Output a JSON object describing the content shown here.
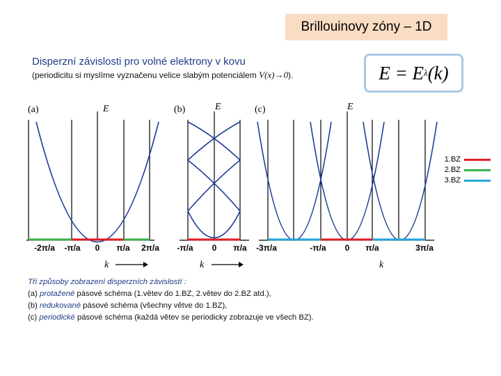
{
  "title": "Brillouinovy zóny – 1D",
  "subtitle": "Disperzní závislosti pro volné elektrony v kovu",
  "note": {
    "text": "(periodicitu si myslíme vyznačenu velice slabým potenciálem",
    "formula": "V(x)→0",
    "end": ")."
  },
  "formula": {
    "main": "E = E",
    "sub": "λ",
    "arg": "(k)"
  },
  "panels": [
    {
      "label": "(a)",
      "ylabel": "E",
      "xlabel": "k",
      "ticks": [
        "-2π/a",
        "-π/a",
        "0",
        "π/a",
        "2π/a"
      ]
    },
    {
      "label": "(b)",
      "ylabel": "E",
      "xlabel": "k",
      "ticks": [
        "-π/a",
        "0",
        "π/a"
      ]
    },
    {
      "label": "(c)",
      "ylabel": "E",
      "xlabel": "k",
      "ticks": [
        "-3π/a",
        "-π/a",
        "0",
        "π/a",
        "3π/a"
      ]
    }
  ],
  "legend": [
    {
      "label": "1.BZ",
      "color": "#e11e26"
    },
    {
      "label": "2.BZ",
      "color": "#3cb34a"
    },
    {
      "label": "3.BZ",
      "color": "#27a6d9"
    }
  ],
  "caption": {
    "line1": "Tři způsoby zobrazení disperzních závislostí :",
    "line2_pre": "(a)",
    "line2_em": "protažené",
    "line2_post": "pásové schéma (1.větev do 1.BZ, 2.větev do 2.BZ atd.),",
    "line3_pre": "(b)",
    "line3_em": "redukované",
    "line3_post": "pásové schéma (všechny větve do 1.BZ),",
    "line4_pre": "(c)",
    "line4_em": "periodické",
    "line4_post": "pásové schéma (každá větev se periodicky zobrazuje ve všech BZ)."
  },
  "colors": {
    "curve": "#1f3c9a",
    "axis": "#000000",
    "title_bg": "#f9dcc4",
    "formula_border": "#a9c9e6"
  }
}
